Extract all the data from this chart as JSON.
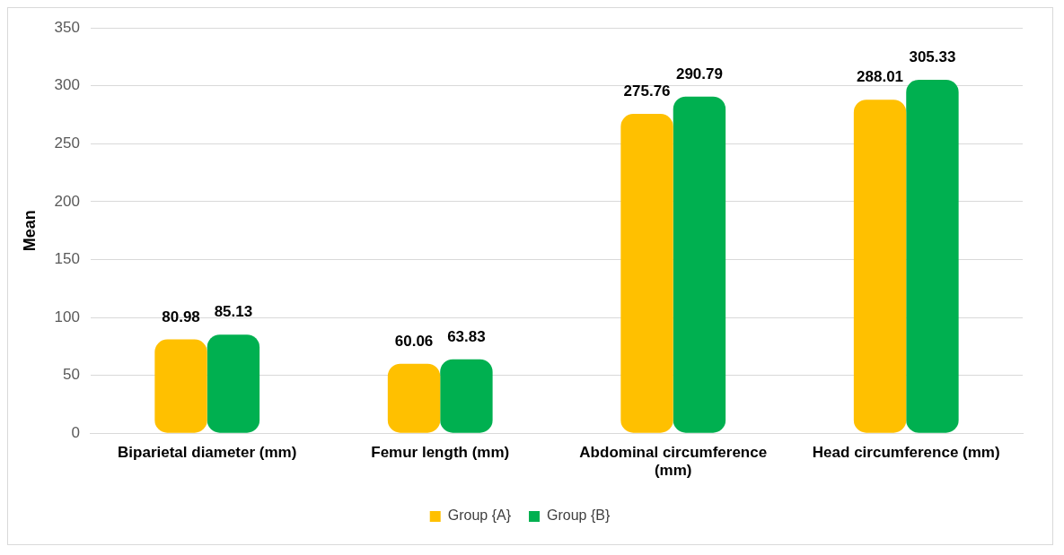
{
  "chart_data": {
    "type": "bar",
    "ylabel": "Mean",
    "categories": [
      "Biparietal diameter (mm)",
      "Femur length (mm)",
      "Abdominal circumference (mm)",
      "Head circumference (mm)"
    ],
    "series": [
      {
        "name": "Group {A}",
        "color": "#ffc000",
        "values": [
          80.98,
          60.06,
          275.76,
          288.01
        ]
      },
      {
        "name": "Group {B}",
        "color": "#00b050",
        "values": [
          85.13,
          63.83,
          290.79,
          305.33
        ]
      }
    ],
    "ylim": [
      0,
      350
    ],
    "yticks": [
      0,
      50,
      100,
      150,
      200,
      250,
      300,
      350
    ],
    "grid": "y",
    "legend": "bottom",
    "data_labels": true
  }
}
